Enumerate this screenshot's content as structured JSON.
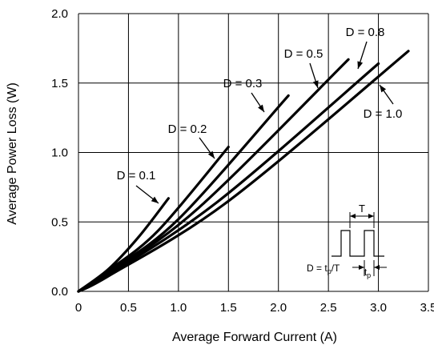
{
  "chart_data": {
    "type": "line",
    "xlabel": "Average Forward Current (A)",
    "ylabel": "Average Power Loss (W)",
    "xlim": [
      0,
      3.5
    ],
    "ylim": [
      0,
      2.0
    ],
    "x_ticks": [
      "0",
      "0.5",
      "1.0",
      "1.5",
      "2.0",
      "2.5",
      "3.0",
      "3.5"
    ],
    "y_ticks": [
      "0.0",
      "0.5",
      "1.0",
      "1.5",
      "2.0"
    ],
    "grid": true,
    "series": [
      {
        "name": "D = 0.1",
        "x": [
          0,
          0.3,
          0.6,
          0.9
        ],
        "y": [
          0,
          0.16,
          0.39,
          0.67
        ]
      },
      {
        "name": "D = 0.2",
        "x": [
          0,
          0.3,
          0.8,
          1.5
        ],
        "y": [
          0,
          0.15,
          0.44,
          1.04
        ]
      },
      {
        "name": "D = 0.3",
        "x": [
          0,
          0.3,
          1.0,
          2.1
        ],
        "y": [
          0,
          0.14,
          0.52,
          1.41
        ]
      },
      {
        "name": "D = 0.5",
        "x": [
          0,
          0.3,
          1.2,
          2.7
        ],
        "y": [
          0,
          0.13,
          0.6,
          1.67
        ]
      },
      {
        "name": "D = 0.8",
        "x": [
          0,
          0.3,
          1.4,
          3.0
        ],
        "y": [
          0,
          0.12,
          0.65,
          1.64
        ]
      },
      {
        "name": "D = 1.0",
        "x": [
          0,
          0.3,
          1.5,
          3.3
        ],
        "y": [
          0,
          0.11,
          0.65,
          1.73
        ]
      }
    ],
    "annotations": [
      {
        "text": "D = 0.1",
        "series": 0
      },
      {
        "text": "D = 0.2",
        "series": 1
      },
      {
        "text": "D = 0.3",
        "series": 2
      },
      {
        "text": "D = 0.5",
        "series": 3
      },
      {
        "text": "D = 0.8",
        "series": 4
      },
      {
        "text": "D = 1.0",
        "series": 5
      }
    ],
    "inset": {
      "period_label": "T",
      "formula_label": "D = t",
      "formula_sub": "p",
      "formula_rest": "/T",
      "pulse_label": "t",
      "pulse_sub": "p"
    }
  }
}
